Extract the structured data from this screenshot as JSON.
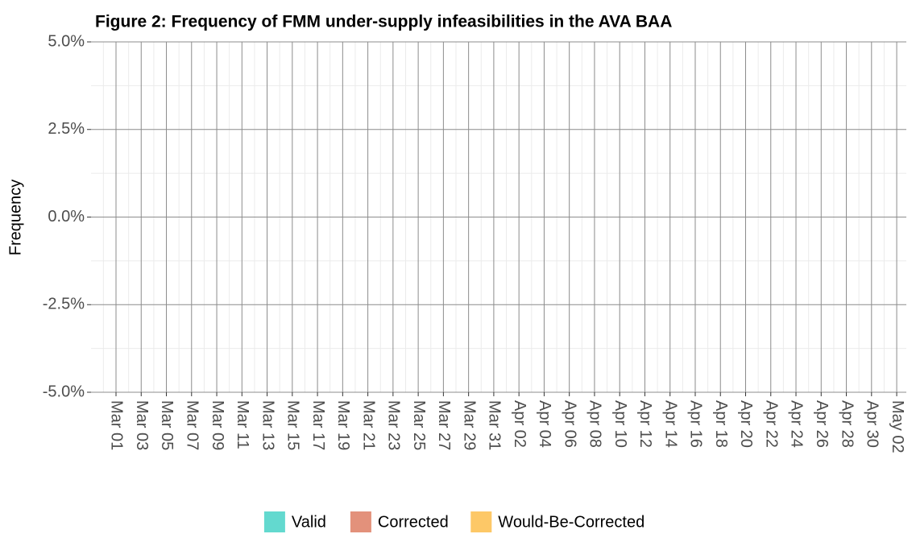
{
  "chart_data": {
    "type": "bar",
    "title": "Figure 2: Frequency of FMM under-supply infeasibilities in the AVA BAA",
    "y_label": "Frequency",
    "categories": [
      "Mar 01",
      "Mar 03",
      "Mar 05",
      "Mar 07",
      "Mar 09",
      "Mar 11",
      "Mar 13",
      "Mar 15",
      "Mar 17",
      "Mar 19",
      "Mar 21",
      "Mar 23",
      "Mar 25",
      "Mar 27",
      "Mar 29",
      "Mar 31",
      "Apr 02",
      "Apr 04",
      "Apr 06",
      "Apr 08",
      "Apr 10",
      "Apr 12",
      "Apr 14",
      "Apr 16",
      "Apr 18",
      "Apr 20",
      "Apr 22",
      "Apr 24",
      "Apr 26",
      "Apr 28",
      "Apr 30",
      "May 02"
    ],
    "series": [
      {
        "name": "Valid",
        "color": "#63d9cf",
        "values": [
          0,
          0,
          0,
          0,
          0,
          0,
          0,
          0,
          0,
          0,
          0,
          0,
          0,
          0,
          0,
          0,
          0,
          0,
          0,
          0,
          0,
          0,
          0,
          0,
          0,
          0,
          0,
          0,
          0,
          0,
          0,
          0
        ]
      },
      {
        "name": "Corrected",
        "color": "#e3917b",
        "values": [
          0,
          0,
          0,
          0,
          0,
          0,
          0,
          0,
          0,
          0,
          0,
          0,
          0,
          0,
          0,
          0,
          0,
          0,
          0,
          0,
          0,
          0,
          0,
          0,
          0,
          0,
          0,
          0,
          0,
          0,
          0,
          0
        ]
      },
      {
        "name": "Would-Be-Corrected",
        "color": "#fdc867",
        "values": [
          0,
          0,
          0,
          0,
          0,
          0,
          0,
          0,
          0,
          0,
          0,
          0,
          0,
          0,
          0,
          0,
          0,
          0,
          0,
          0,
          0,
          0,
          0,
          0,
          0,
          0,
          0,
          0,
          0,
          0,
          0,
          0
        ]
      }
    ],
    "ylim": [
      -5,
      5
    ],
    "yticks": [
      {
        "value": -5,
        "label": "-5.0%"
      },
      {
        "value": -2.5,
        "label": "-2.5%"
      },
      {
        "value": 0,
        "label": "0.0%"
      },
      {
        "value": 2.5,
        "label": "2.5%"
      },
      {
        "value": 5,
        "label": "5.0%"
      }
    ],
    "grid": true,
    "legend": "bottom"
  }
}
